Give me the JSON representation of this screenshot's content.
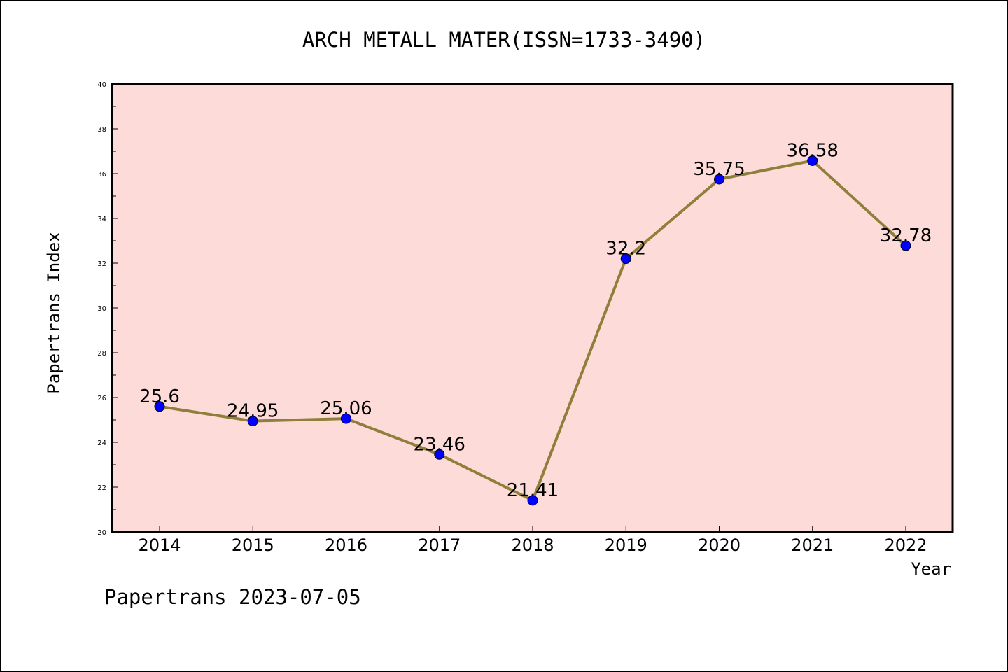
{
  "chart_data": {
    "type": "line",
    "title": "ARCH METALL MATER(ISSN=1733-3490)",
    "xlabel": "Year",
    "ylabel": "Papertrans Index",
    "categories": [
      "2014",
      "2015",
      "2016",
      "2017",
      "2018",
      "2019",
      "2020",
      "2021",
      "2022"
    ],
    "values": [
      25.6,
      24.95,
      25.06,
      23.46,
      21.41,
      32.2,
      35.75,
      36.58,
      32.78
    ],
    "data_labels": [
      "25.6",
      "24.95",
      "25.06",
      "23.46",
      "21.41",
      "32.2",
      "35.75",
      "36.58",
      "32.78"
    ],
    "ylim": [
      20,
      40
    ],
    "yticks": [
      20,
      22,
      24,
      26,
      28,
      30,
      32,
      34,
      36,
      38,
      40
    ],
    "grid": false,
    "legend": "none",
    "colors": {
      "plot_background": "#fddbd9",
      "line": "#8f7f3b",
      "marker": "#0000ff"
    }
  },
  "footer": "Papertrans 2023-07-05"
}
